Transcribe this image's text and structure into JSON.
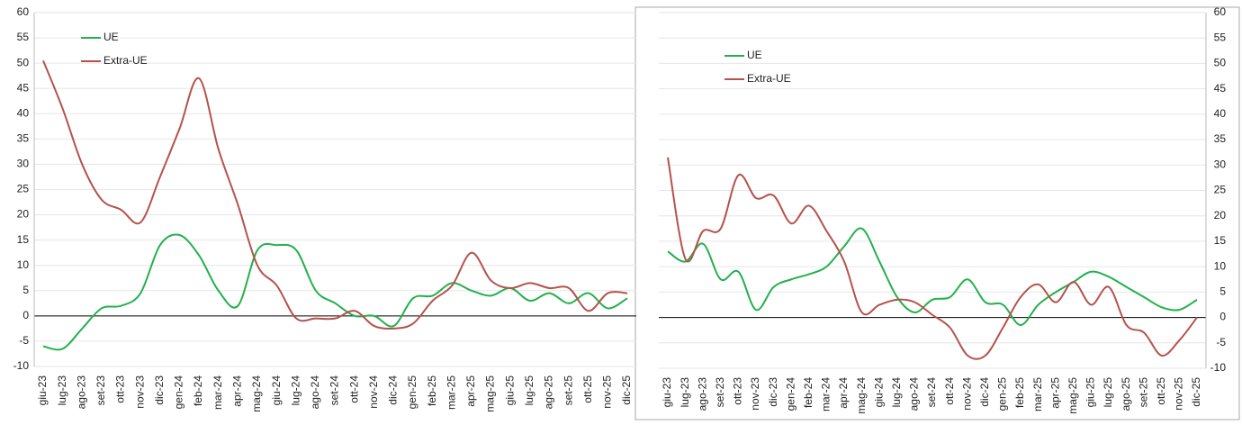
{
  "chart_data": [
    {
      "type": "line",
      "categories": [
        "giu-23",
        "lug-23",
        "ago-23",
        "set-23",
        "ott-23",
        "nov-23",
        "dic-23",
        "gen-24",
        "feb-24",
        "mar-24",
        "apr-24",
        "mag-24",
        "giu-24",
        "lug-24",
        "ago-24",
        "set-24",
        "ott-24",
        "nov-24",
        "dic-24",
        "gen-25",
        "feb-25",
        "mar-25",
        "apr-25",
        "mag-25",
        "giu-25",
        "lug-25",
        "ago-25",
        "set-25",
        "ott-25",
        "nov-25",
        "dic-25"
      ],
      "series": [
        {
          "name": "UE",
          "color": "#22b14c",
          "values": [
            -6,
            -6.5,
            -2.5,
            1.5,
            2,
            4.5,
            14,
            16,
            12,
            5,
            2,
            13,
            14,
            13,
            5,
            2.5,
            0,
            0,
            -2,
            3.5,
            4,
            6.5,
            5,
            4,
            5.5,
            3,
            4.5,
            2.5,
            4.5,
            1.5,
            3.5
          ]
        },
        {
          "name": "Extra-UE",
          "color": "#b5524c",
          "values": [
            50.5,
            41,
            30,
            23,
            21,
            18.5,
            27.5,
            37,
            47,
            33,
            22,
            10,
            6,
            -0.5,
            -0.5,
            -0.5,
            1,
            -2,
            -2.5,
            -1.5,
            3,
            6,
            12.5,
            7,
            5.5,
            6.5,
            5.5,
            5.5,
            1,
            4.5,
            4.5
          ]
        }
      ],
      "ylim": [
        -10,
        60
      ],
      "yticks": [
        -10,
        -5,
        0,
        5,
        10,
        15,
        20,
        25,
        30,
        35,
        40,
        45,
        50,
        55,
        60
      ],
      "y_axis_side": "left",
      "grid": true,
      "legend": "upper left"
    },
    {
      "type": "line",
      "categories": [
        "giu-23",
        "lug-23",
        "ago-23",
        "set-23",
        "ott-23",
        "nov-23",
        "dic-23",
        "gen-24",
        "feb-24",
        "mar-24",
        "apr-24",
        "mag-24",
        "giu-24",
        "lug-24",
        "ago-24",
        "set-24",
        "ott-24",
        "nov-24",
        "dic-24",
        "gen-25",
        "feb-25",
        "mar-25",
        "apr-25",
        "mag-25",
        "giu-25",
        "lug-25",
        "ago-25",
        "set-25",
        "ott-25",
        "nov-25",
        "dic-25"
      ],
      "series": [
        {
          "name": "UE",
          "color": "#22b14c",
          "values": [
            13,
            11,
            14.5,
            7.5,
            9,
            1.5,
            6,
            7.5,
            8.5,
            10,
            14,
            17.5,
            11,
            4,
            1,
            3.5,
            4,
            7.5,
            3,
            2.5,
            -1.5,
            2.5,
            5,
            7,
            9,
            8,
            6,
            4,
            2,
            1.5,
            3.5
          ]
        },
        {
          "name": "Extra-UE",
          "color": "#b5524c",
          "values": [
            31.5,
            11.5,
            17,
            17.5,
            28,
            23.5,
            24,
            18.5,
            22,
            17,
            11,
            1,
            2.5,
            3.5,
            3,
            0.5,
            -2,
            -7.5,
            -7.5,
            -2,
            4,
            6.5,
            3,
            7,
            2.5,
            6,
            -1.5,
            -3,
            -7.5,
            -4.5,
            0
          ]
        }
      ],
      "ylim": [
        -10,
        60
      ],
      "yticks": [
        -10,
        -5,
        0,
        5,
        10,
        15,
        20,
        25,
        30,
        35,
        40,
        45,
        50,
        55,
        60
      ],
      "y_axis_side": "right",
      "grid": true,
      "legend": "upper left"
    }
  ]
}
